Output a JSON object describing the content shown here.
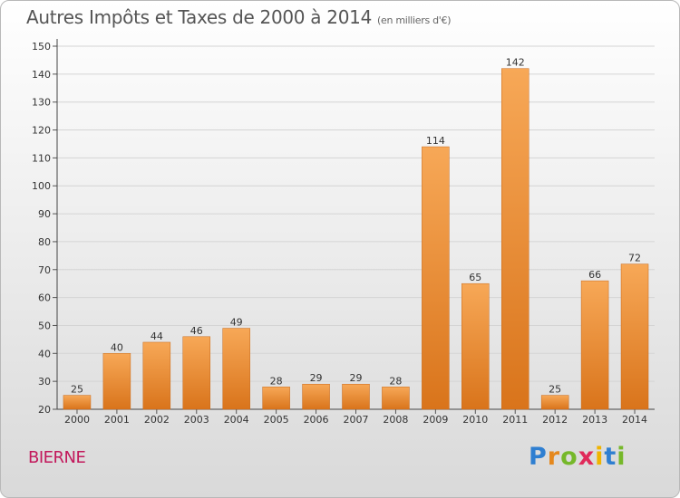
{
  "chart_data": {
    "type": "bar",
    "title": "Autres Impôts et Taxes de 2000 à 2014",
    "subtitle": "(en milliers d'€)",
    "categories": [
      "2000",
      "2001",
      "2002",
      "2003",
      "2004",
      "2005",
      "2006",
      "2007",
      "2008",
      "2009",
      "2010",
      "2011",
      "2012",
      "2013",
      "2014"
    ],
    "values": [
      25,
      40,
      44,
      46,
      49,
      28,
      29,
      29,
      28,
      114,
      65,
      142,
      25,
      66,
      72
    ],
    "ylim": [
      20,
      150
    ],
    "yticks": [
      20,
      30,
      40,
      50,
      60,
      70,
      80,
      90,
      100,
      110,
      120,
      130,
      140,
      150
    ],
    "grid": true,
    "bar_color": "#f0922e"
  },
  "place_name": "BIERNE",
  "logo": {
    "letters": [
      "P",
      "r",
      "o",
      "x",
      "i",
      "t",
      "i"
    ]
  }
}
